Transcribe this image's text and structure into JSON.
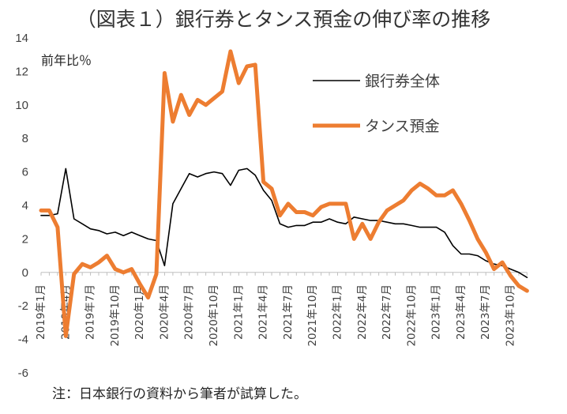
{
  "chart_data": {
    "type": "line",
    "title": "（図表１）銀行券とタンス預金の伸び率の推移",
    "ylabel": "前年比％",
    "note": "注：日本銀行の資料から筆者が試算した。",
    "ylim": [
      -6,
      14
    ],
    "yticks": [
      -6,
      -4,
      -2,
      0,
      2,
      4,
      6,
      8,
      10,
      12,
      14
    ],
    "xtick_labels": [
      {
        "index": 0,
        "label": "2019年1月"
      },
      {
        "index": 3,
        "label": "2019年4月"
      },
      {
        "index": 6,
        "label": "2019年7月"
      },
      {
        "index": 9,
        "label": "2019年10月"
      },
      {
        "index": 12,
        "label": "2020年1月"
      },
      {
        "index": 15,
        "label": "2020年4月"
      },
      {
        "index": 18,
        "label": "2020年7月"
      },
      {
        "index": 21,
        "label": "2020年10月"
      },
      {
        "index": 24,
        "label": "2021年1月"
      },
      {
        "index": 27,
        "label": "2021年4月"
      },
      {
        "index": 30,
        "label": "2021年7月"
      },
      {
        "index": 33,
        "label": "2021年10月"
      },
      {
        "index": 36,
        "label": "2022年1月"
      },
      {
        "index": 39,
        "label": "2022年4月"
      },
      {
        "index": 42,
        "label": "2022年7月"
      },
      {
        "index": 45,
        "label": "2022年10月"
      },
      {
        "index": 48,
        "label": "2023年1月"
      },
      {
        "index": 51,
        "label": "2023年4月"
      },
      {
        "index": 54,
        "label": "2023年7月"
      },
      {
        "index": 57,
        "label": "2023年10月"
      }
    ],
    "legend_position": "top-right",
    "series": [
      {
        "name": "銀行券全体",
        "color": "#000000",
        "values": [
          3.4,
          3.4,
          3.5,
          6.2,
          3.2,
          2.9,
          2.6,
          2.5,
          2.3,
          2.4,
          2.2,
          2.4,
          2.2,
          2.0,
          1.9,
          0.4,
          4.1,
          5.0,
          5.9,
          5.7,
          5.9,
          6.0,
          5.9,
          5.2,
          6.1,
          6.2,
          5.8,
          4.9,
          4.3,
          2.9,
          2.7,
          2.8,
          2.8,
          3.0,
          3.0,
          3.2,
          3.0,
          2.9,
          3.3,
          3.2,
          3.1,
          3.1,
          3.0,
          2.9,
          2.9,
          2.8,
          2.7,
          2.7,
          2.7,
          2.4,
          1.6,
          1.1,
          1.1,
          1.0,
          0.7,
          0.5,
          0.4,
          0.2,
          0.0,
          -0.3
        ]
      },
      {
        "name": "タンス預金",
        "color": "#ED7D31",
        "values": [
          3.7,
          3.7,
          2.7,
          -3.8,
          -0.1,
          0.5,
          0.3,
          0.6,
          1.0,
          0.2,
          0.0,
          0.2,
          -0.7,
          -1.5,
          -0.1,
          11.9,
          9.0,
          10.6,
          9.4,
          10.3,
          10.0,
          10.4,
          10.8,
          13.2,
          11.3,
          12.3,
          12.4,
          5.4,
          5.0,
          3.4,
          4.1,
          3.6,
          3.6,
          3.4,
          3.9,
          4.1,
          4.1,
          4.1,
          2.0,
          2.9,
          2.0,
          3.0,
          3.7,
          4.0,
          4.3,
          4.9,
          5.3,
          5.0,
          4.6,
          4.6,
          4.9,
          4.1,
          3.1,
          2.0,
          1.2,
          0.2,
          0.6,
          -0.2,
          -0.8,
          -1.1
        ]
      }
    ]
  }
}
